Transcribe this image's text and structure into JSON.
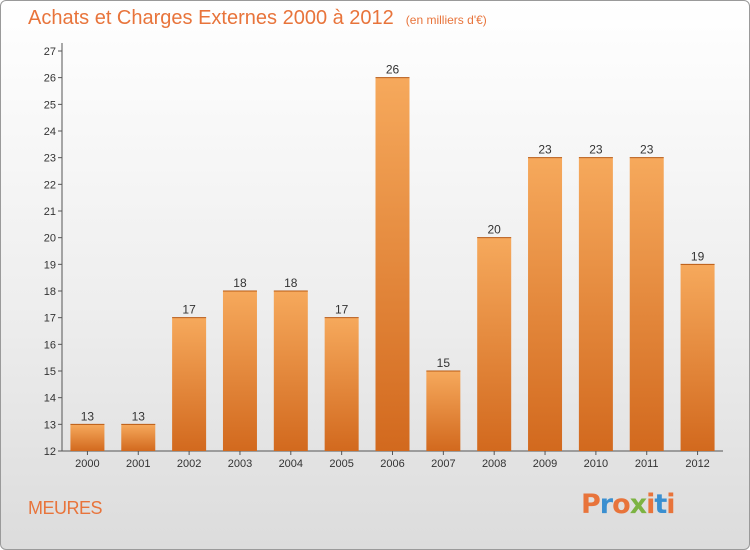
{
  "title": "Achats et Charges Externes 2000 à 2012",
  "unit_note": "(en milliers d'€)",
  "town": "MEURES",
  "logo": {
    "text": "Proxiti",
    "colors": [
      "#e8743b",
      "#3a8fd0",
      "#e8743b",
      "#7cb342",
      "#e8743b",
      "#3a8fd0",
      "#e8743b"
    ]
  },
  "colors": {
    "bar_light": "#f6a95c",
    "bar_dark": "#d2691e",
    "title": "#e8743b",
    "axis": "#555555"
  },
  "chart_data": {
    "type": "bar",
    "categories": [
      "2000",
      "2001",
      "2002",
      "2003",
      "2004",
      "2005",
      "2006",
      "2007",
      "2008",
      "2009",
      "2010",
      "2011",
      "2012"
    ],
    "values": [
      13,
      13,
      17,
      18,
      18,
      17,
      26,
      15,
      20,
      23,
      23,
      23,
      19
    ],
    "ylim": [
      12,
      27
    ],
    "yticks": [
      12,
      13,
      14,
      15,
      16,
      17,
      18,
      19,
      20,
      21,
      22,
      23,
      24,
      25,
      26,
      27
    ],
    "grid": false,
    "legend": "none"
  }
}
